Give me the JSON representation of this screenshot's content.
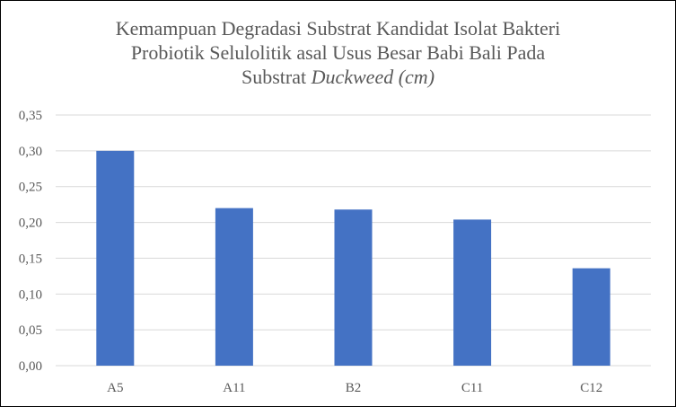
{
  "chart_data": {
    "type": "bar",
    "title_lines": [
      "Kemampuan Degradasi Substrat Kandidat Isolat Bakteri",
      "Probiotik Selulolitik asal Usus Besar Babi Bali Pada"
    ],
    "title_last_line": {
      "text": "Substrat ",
      "italic": "Duckweed (cm)"
    },
    "categories": [
      "A5",
      "A11",
      "B2",
      "C11",
      "C12"
    ],
    "values": [
      0.3,
      0.22,
      0.218,
      0.204,
      0.136
    ],
    "ylim": [
      0,
      0.35
    ],
    "y_ticks": [
      0.0,
      0.05,
      0.1,
      0.15,
      0.2,
      0.25,
      0.3,
      0.35
    ],
    "y_tick_labels": [
      "0,00",
      "0,05",
      "0,10",
      "0,15",
      "0,20",
      "0,25",
      "0,30",
      "0,35"
    ],
    "xlabel": "",
    "ylabel": "",
    "grid": true,
    "legend": "none",
    "bar_color": "#4472C4",
    "grid_color": "#D9D9D9",
    "text_color": "#595959"
  }
}
